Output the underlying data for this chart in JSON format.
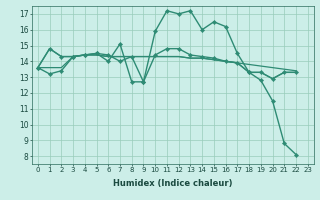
{
  "xlabel": "Humidex (Indice chaleur)",
  "bg_color": "#cceee8",
  "line_color": "#2e8b74",
  "grid_color": "#99ccbb",
  "xlim": [
    -0.5,
    23.5
  ],
  "ylim": [
    7.5,
    17.5
  ],
  "xticks": [
    0,
    1,
    2,
    3,
    4,
    5,
    6,
    7,
    8,
    9,
    10,
    11,
    12,
    13,
    14,
    15,
    16,
    17,
    18,
    19,
    20,
    21,
    22,
    23
  ],
  "yticks": [
    8,
    9,
    10,
    11,
    12,
    13,
    14,
    15,
    16,
    17
  ],
  "series": [
    {
      "x": [
        0,
        1,
        2,
        3,
        4,
        5,
        6,
        7,
        8,
        9,
        10,
        11,
        12,
        13,
        14,
        15,
        16,
        17,
        18,
        19,
        20,
        21,
        22
      ],
      "y": [
        13.6,
        13.2,
        13.4,
        14.3,
        14.4,
        14.5,
        14.0,
        15.1,
        12.7,
        12.7,
        15.9,
        17.2,
        17.0,
        17.2,
        16.0,
        16.5,
        16.2,
        14.5,
        13.3,
        12.8,
        11.5,
        8.8,
        8.1
      ],
      "marker": true,
      "linewidth": 1.0
    },
    {
      "x": [
        0,
        1,
        2,
        3,
        4,
        5,
        6,
        7,
        8,
        9,
        10,
        11,
        12,
        13,
        14,
        15,
        16,
        17,
        18,
        19,
        20,
        21,
        22
      ],
      "y": [
        13.6,
        13.6,
        13.6,
        14.3,
        14.4,
        14.4,
        14.3,
        14.3,
        14.3,
        14.3,
        14.3,
        14.3,
        14.3,
        14.2,
        14.2,
        14.1,
        14.0,
        13.9,
        13.8,
        13.7,
        13.6,
        13.5,
        13.4
      ],
      "marker": false,
      "linewidth": 0.9
    },
    {
      "x": [
        0,
        1,
        2,
        3,
        4,
        5,
        6,
        7,
        8,
        9,
        10,
        11,
        12,
        13,
        14,
        15,
        16,
        17,
        18,
        19,
        20,
        21,
        22
      ],
      "y": [
        13.6,
        14.8,
        14.3,
        14.3,
        14.4,
        14.4,
        14.3,
        14.3,
        14.3,
        14.3,
        14.3,
        14.3,
        14.3,
        14.2,
        14.2,
        14.1,
        14.0,
        13.9,
        13.3,
        13.3,
        12.9,
        13.3,
        13.3
      ],
      "marker": false,
      "linewidth": 0.9
    },
    {
      "x": [
        0,
        1,
        2,
        3,
        4,
        5,
        6,
        7,
        8,
        9,
        10,
        11,
        12,
        13,
        14,
        15,
        16,
        17,
        18,
        19,
        20,
        21,
        22
      ],
      "y": [
        13.6,
        14.8,
        14.3,
        14.3,
        14.4,
        14.5,
        14.4,
        14.0,
        14.3,
        12.7,
        14.4,
        14.8,
        14.8,
        14.4,
        14.3,
        14.2,
        14.0,
        13.9,
        13.3,
        13.3,
        12.9,
        13.3,
        13.3
      ],
      "marker": true,
      "linewidth": 1.0
    }
  ]
}
